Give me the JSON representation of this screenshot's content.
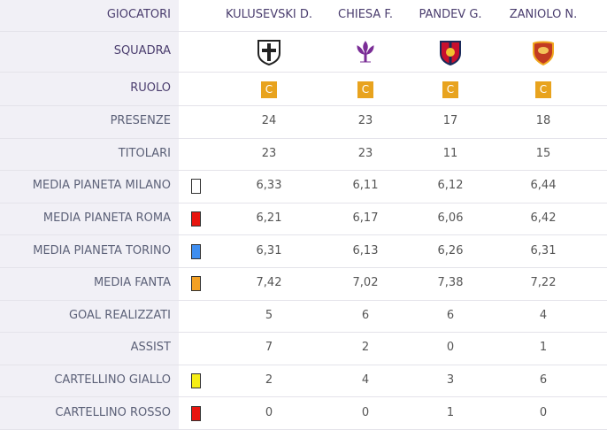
{
  "table": {
    "header": {
      "label": "GIOCATORI",
      "players": [
        "KULUSEVSKI D.",
        "CHIESA F.",
        "PANDEV G.",
        "ZANIOLO N."
      ]
    },
    "team_row": {
      "label": "SQUADRA"
    },
    "role_row": {
      "label": "RUOLO",
      "roles": [
        "C",
        "C",
        "C",
        "C"
      ],
      "color": "#e8a31e"
    },
    "rows": [
      {
        "label": "PRESENZE",
        "values": [
          "24",
          "23",
          "17",
          "18"
        ]
      },
      {
        "label": "TITOLARI",
        "values": [
          "23",
          "23",
          "11",
          "15"
        ]
      },
      {
        "label": "MEDIA PIANETA MILANO",
        "swatch": "#ffffff",
        "values": [
          "6,33",
          "6,11",
          "6,12",
          "6,44"
        ]
      },
      {
        "label": "MEDIA PIANETA ROMA",
        "swatch": "#e8150f",
        "values": [
          "6,21",
          "6,17",
          "6,06",
          "6,42"
        ]
      },
      {
        "label": "MEDIA PIANETA TORINO",
        "swatch": "#3f8ef0",
        "values": [
          "6,31",
          "6,13",
          "6,26",
          "6,31"
        ]
      },
      {
        "label": "MEDIA FANTA",
        "swatch": "#f2a024",
        "values": [
          "7,42",
          "7,02",
          "7,38",
          "7,22"
        ]
      },
      {
        "label": "GOAL REALIZZATI",
        "values": [
          "5",
          "6",
          "6",
          "4"
        ]
      },
      {
        "label": "ASSIST",
        "values": [
          "7",
          "2",
          "0",
          "1"
        ]
      },
      {
        "label": "CARTELLINO GIALLO",
        "swatch": "#f6ee16",
        "values": [
          "2",
          "4",
          "3",
          "6"
        ]
      },
      {
        "label": "CARTELLINO ROSSO",
        "swatch": "#e8150f",
        "values": [
          "0",
          "0",
          "1",
          "0"
        ]
      }
    ]
  }
}
